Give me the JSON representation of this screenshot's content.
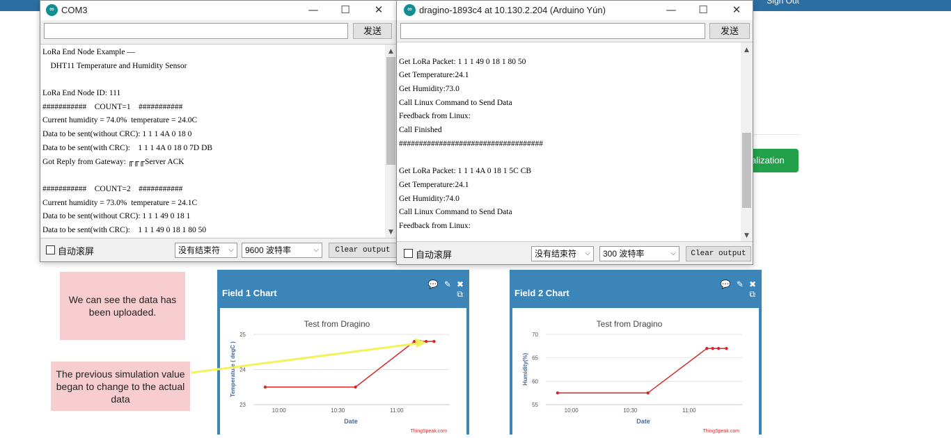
{
  "topbar": {
    "signout": "Sign Out"
  },
  "green_button": {
    "label": "alization"
  },
  "com3": {
    "title": "COM3",
    "icon": "arduino-icon",
    "send_label": "发送",
    "lines": [
      "LoRa End Node Example —",
      "    DHT11 Temperature and Humidity Sensor",
      "",
      "LoRa End Node ID: 111",
      "###########    COUNT=1    ###########",
      "Current humidity = 74.0%  temperature = 24.0C",
      "Data to be sent(without CRC): 1 1 1 4A 0 18 0",
      "Data to be sent(with CRC):    1 1 1 4A 0 18 0 7D DB",
      "Got Reply from Gateway: ╓╓╓Server ACK",
      "",
      "###########    COUNT=2    ###########",
      "Current humidity = 73.0%  temperature = 24.1C",
      "Data to be sent(without CRC): 1 1 1 49 0 18 1",
      "Data to be sent(with CRC):    1 1 1 49 0 18 1 80 50"
    ],
    "autoscroll": "自动滚屏",
    "line_ending": "没有结束符",
    "baud": "9600 波特率",
    "clear": "Clear output"
  },
  "yun": {
    "title": "dragino-1893c4 at 10.130.2.204 (Arduino Yún)",
    "icon": "arduino-icon",
    "send_label": "发送",
    "lines": [
      "",
      "Get LoRa Packet: 1 1 1 49 0 18 1 80 50",
      "Get Temperature:24.1",
      "Get Humidity:73.0",
      "Call Linux Command to Send Data",
      "Feedback from Linux:",
      "Call Finished",
      "####################################",
      "",
      "Get LoRa Packet: 1 1 1 4A 0 18 1 5C CB",
      "Get Temperature:24.1",
      "Get Humidity:74.0",
      "Call Linux Command to Send Data",
      "Feedback from Linux:"
    ],
    "autoscroll": "自动滚屏",
    "line_ending": "没有结束符",
    "baud": "300 波特率",
    "clear": "Clear output"
  },
  "notes": {
    "uploaded": "We can see the data has been uploaded.",
    "simulation": "The previous simulation value began to change to the actual data"
  },
  "field1": {
    "title": "Field 1 Chart",
    "icons": [
      "comment-icon",
      "pencil-icon",
      "close-icon",
      "external-link-icon"
    ]
  },
  "field2": {
    "title": "Field 2 Chart",
    "icons": [
      "comment-icon",
      "pencil-icon",
      "close-icon",
      "external-link-icon"
    ]
  },
  "chart_data": [
    {
      "type": "line",
      "title": "Test from Dragino",
      "xlabel": "Date",
      "ylabel": "Temperature ( degC )",
      "x_ticks": [
        "10:00",
        "10:30",
        "11:00"
      ],
      "y_ticks": [
        23,
        24,
        25
      ],
      "ylim": [
        23,
        25
      ],
      "series": [
        {
          "x": [
            "09:53",
            "10:39",
            "11:09",
            "11:12",
            "11:15",
            "11:19"
          ],
          "values": [
            23.5,
            23.5,
            24.8,
            24.8,
            24.8,
            24.8
          ]
        }
      ],
      "credit": "ThingSpeak.com",
      "color": "#d62728"
    },
    {
      "type": "line",
      "title": "Test from Dragino",
      "xlabel": "Date",
      "ylabel": "Humidity(%)",
      "x_ticks": [
        "10:00",
        "10:30",
        "11:00"
      ],
      "y_ticks": [
        55,
        60,
        65,
        70
      ],
      "ylim": [
        55,
        70
      ],
      "series": [
        {
          "x": [
            "09:53",
            "10:39",
            "11:09",
            "11:12",
            "11:15",
            "11:19"
          ],
          "values": [
            57.5,
            57.5,
            67,
            67,
            67,
            67
          ]
        }
      ],
      "credit": "ThingSpeak.com",
      "color": "#d62728"
    }
  ]
}
